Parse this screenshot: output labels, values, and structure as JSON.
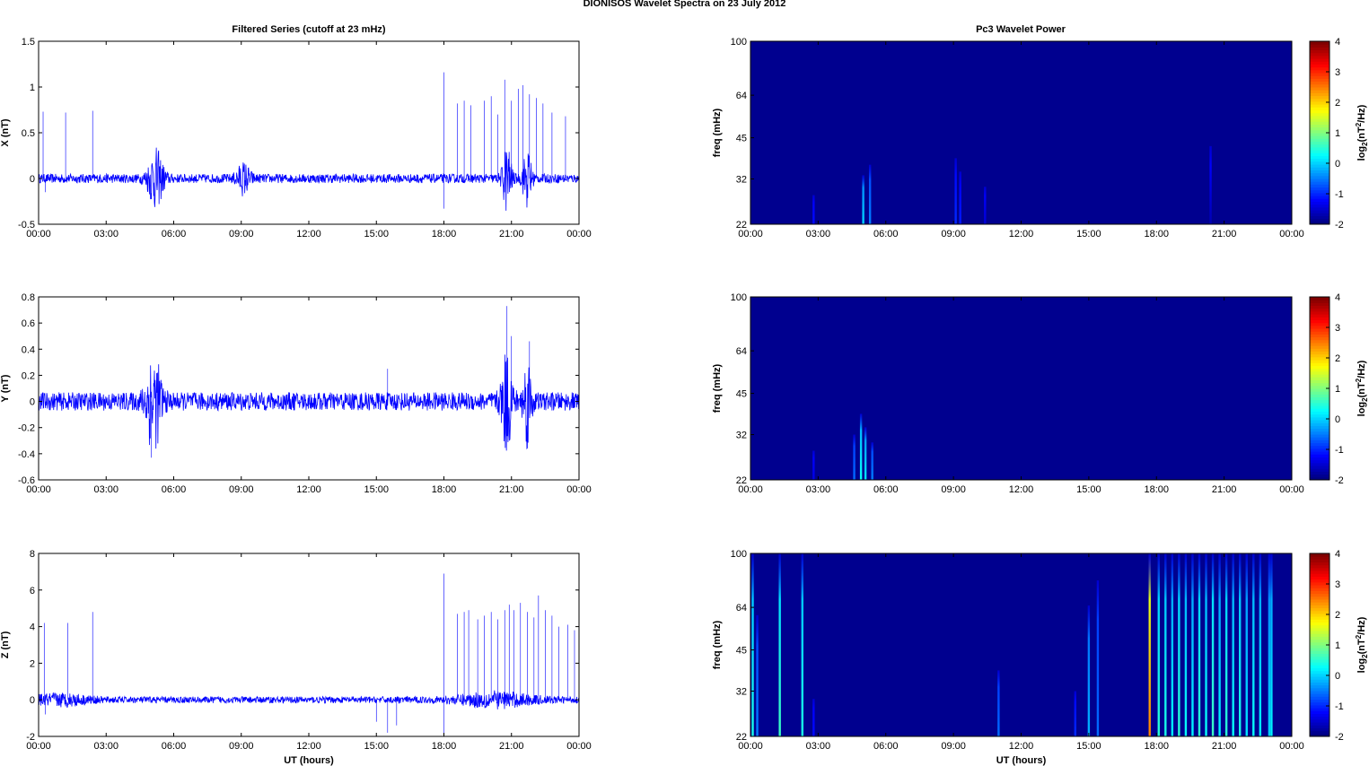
{
  "figure": {
    "title": "DIONISOS Wavelet Spectra on 23 July      2012",
    "left_column_title": "Filtered Series (cutoff at 23 mHz)",
    "right_column_title": "Pc3 Wavelet Power",
    "xlabel": "UT (hours)"
  },
  "colors": {
    "trace": "#0000ff",
    "spectrum_background": "#00008f",
    "colormap": "jet"
  },
  "chart_data": [
    {
      "type": "line",
      "panel": "X",
      "ylabel": "X (nT)",
      "xlabel": "",
      "x_ticks": [
        "00:00",
        "03:00",
        "06:00",
        "09:00",
        "12:00",
        "15:00",
        "18:00",
        "21:00",
        "00:00"
      ],
      "xlim": [
        0,
        24
      ],
      "ylim": [
        -0.5,
        1.5
      ],
      "y_ticks": [
        -0.5,
        0,
        0.5,
        1,
        1.5
      ],
      "y_tick_labels": [
        "-0.5",
        "0",
        "0.5",
        "1",
        "1.5"
      ],
      "noise_amplitude": 0.05,
      "bursts": [
        {
          "center": 5.2,
          "width": 0.35,
          "amplitude": 0.3
        },
        {
          "center": 9.1,
          "width": 0.3,
          "amplitude": 0.15
        },
        {
          "center": 20.8,
          "width": 0.2,
          "amplitude": 0.35
        },
        {
          "center": 21.7,
          "width": 0.2,
          "amplitude": 0.3
        }
      ],
      "spikes": [
        {
          "x": 0.2,
          "y": 0.73
        },
        {
          "x": 0.3,
          "y": -0.15
        },
        {
          "x": 1.2,
          "y": 0.72
        },
        {
          "x": 2.4,
          "y": 0.74
        },
        {
          "x": 18.0,
          "y": 1.16
        },
        {
          "x": 18.0,
          "y": -0.33
        },
        {
          "x": 18.6,
          "y": 0.82
        },
        {
          "x": 18.9,
          "y": 0.85
        },
        {
          "x": 19.2,
          "y": 0.8
        },
        {
          "x": 19.8,
          "y": 0.85
        },
        {
          "x": 20.1,
          "y": 0.9
        },
        {
          "x": 20.4,
          "y": 0.7
        },
        {
          "x": 20.7,
          "y": 1.08
        },
        {
          "x": 21.0,
          "y": 0.85
        },
        {
          "x": 21.3,
          "y": 0.98
        },
        {
          "x": 21.5,
          "y": 1.02
        },
        {
          "x": 21.8,
          "y": 0.92
        },
        {
          "x": 22.1,
          "y": 0.88
        },
        {
          "x": 22.4,
          "y": 0.82
        },
        {
          "x": 22.8,
          "y": 0.72
        },
        {
          "x": 23.4,
          "y": 0.68
        }
      ]
    },
    {
      "type": "line",
      "panel": "Y",
      "ylabel": "Y (nT)",
      "xlabel": "",
      "x_ticks": [
        "00:00",
        "03:00",
        "06:00",
        "09:00",
        "12:00",
        "15:00",
        "18:00",
        "21:00",
        "00:00"
      ],
      "xlim": [
        0,
        24
      ],
      "ylim": [
        -0.6,
        0.8
      ],
      "y_ticks": [
        -0.6,
        -0.4,
        -0.2,
        0,
        0.2,
        0.4,
        0.6,
        0.8
      ],
      "y_tick_labels": [
        "-0.6",
        "-0.4",
        "-0.2",
        "0",
        "0.2",
        "0.4",
        "0.6",
        "0.8"
      ],
      "noise_amplitude": 0.07,
      "bursts": [
        {
          "center": 5.1,
          "width": 0.35,
          "amplitude": 0.35
        },
        {
          "center": 20.8,
          "width": 0.25,
          "amplitude": 0.35
        },
        {
          "center": 21.7,
          "width": 0.2,
          "amplitude": 0.3
        }
      ],
      "spikes": [
        {
          "x": 5.0,
          "y": -0.43
        },
        {
          "x": 15.5,
          "y": 0.25
        },
        {
          "x": 20.8,
          "y": 0.73
        },
        {
          "x": 21.0,
          "y": 0.5
        },
        {
          "x": 21.8,
          "y": 0.46
        }
      ]
    },
    {
      "type": "line",
      "panel": "Z",
      "ylabel": "Z (nT)",
      "xlabel": "UT (hours)",
      "x_ticks": [
        "00:00",
        "03:00",
        "06:00",
        "09:00",
        "12:00",
        "15:00",
        "18:00",
        "21:00",
        "00:00"
      ],
      "xlim": [
        0,
        24
      ],
      "ylim": [
        -2,
        8
      ],
      "y_ticks": [
        -2,
        0,
        2,
        4,
        6,
        8
      ],
      "y_tick_labels": [
        "-2",
        "0",
        "2",
        "4",
        "6",
        "8"
      ],
      "noise_amplitude": 0.18,
      "bursts": [
        {
          "center": 1.0,
          "width": 1.2,
          "amplitude": 0.25
        },
        {
          "center": 20.3,
          "width": 1.6,
          "amplitude": 0.35
        }
      ],
      "spikes": [
        {
          "x": 0.25,
          "y": 4.2
        },
        {
          "x": 0.3,
          "y": -0.8
        },
        {
          "x": 1.3,
          "y": 4.2
        },
        {
          "x": 2.4,
          "y": 4.8
        },
        {
          "x": 15.0,
          "y": -1.2
        },
        {
          "x": 15.5,
          "y": -1.8
        },
        {
          "x": 15.9,
          "y": -1.4
        },
        {
          "x": 18.0,
          "y": 6.9
        },
        {
          "x": 18.0,
          "y": -1.9
        },
        {
          "x": 18.6,
          "y": 4.7
        },
        {
          "x": 18.9,
          "y": 4.8
        },
        {
          "x": 19.1,
          "y": 4.9
        },
        {
          "x": 19.5,
          "y": 4.4
        },
        {
          "x": 19.8,
          "y": 4.6
        },
        {
          "x": 20.1,
          "y": 4.8
        },
        {
          "x": 20.4,
          "y": 4.4
        },
        {
          "x": 20.7,
          "y": 4.9
        },
        {
          "x": 20.9,
          "y": 5.2
        },
        {
          "x": 21.1,
          "y": 4.9
        },
        {
          "x": 21.4,
          "y": 5.3
        },
        {
          "x": 21.7,
          "y": 4.8
        },
        {
          "x": 22.0,
          "y": 4.5
        },
        {
          "x": 22.2,
          "y": 5.7
        },
        {
          "x": 22.5,
          "y": 4.9
        },
        {
          "x": 22.8,
          "y": 4.6
        },
        {
          "x": 23.1,
          "y": 4.0
        },
        {
          "x": 23.5,
          "y": 4.1
        },
        {
          "x": 23.8,
          "y": 3.8
        }
      ]
    },
    {
      "type": "heatmap",
      "panel": "X",
      "ylabel": "freq (mHz)",
      "xlabel": "",
      "x_ticks": [
        "00:00",
        "03:00",
        "06:00",
        "09:00",
        "12:00",
        "15:00",
        "18:00",
        "21:00",
        "00:00"
      ],
      "xlim": [
        0,
        24
      ],
      "ylim": [
        22,
        100
      ],
      "y_ticks": [
        22,
        32,
        45,
        64,
        100
      ],
      "y_tick_labels": [
        "22",
        "32",
        "45",
        "64",
        "100"
      ],
      "colorbar_label": "log2(nT²/Hz)",
      "colorbar_label_base": "log",
      "colorbar_label_sub": "2",
      "colorbar_label_paren": "(nT",
      "colorbar_label_sup": "2",
      "colorbar_label_tail": "/Hz)",
      "clim": [
        -2,
        4
      ],
      "colorbar_ticks": [
        -2,
        -1,
        0,
        1,
        2,
        3,
        4
      ],
      "colorbar_tick_labels": [
        "-2",
        "-1",
        "0",
        "1",
        "2",
        "3",
        "4"
      ],
      "streaks": [
        {
          "t": 2.8,
          "fmax": 28,
          "level": -1.2
        },
        {
          "t": 5.0,
          "fmax": 33,
          "level": 0.0
        },
        {
          "t": 5.3,
          "fmax": 36,
          "level": -0.5
        },
        {
          "t": 9.1,
          "fmax": 38,
          "level": -1.0
        },
        {
          "t": 9.3,
          "fmax": 34,
          "level": -1.1
        },
        {
          "t": 10.4,
          "fmax": 30,
          "level": -1.5
        },
        {
          "t": 20.4,
          "fmax": 42,
          "level": -1.7
        }
      ]
    },
    {
      "type": "heatmap",
      "panel": "Y",
      "ylabel": "freq (mHz)",
      "xlabel": "",
      "x_ticks": [
        "00:00",
        "03:00",
        "06:00",
        "09:00",
        "12:00",
        "15:00",
        "18:00",
        "21:00",
        "00:00"
      ],
      "xlim": [
        0,
        24
      ],
      "ylim": [
        22,
        100
      ],
      "y_ticks": [
        22,
        32,
        45,
        64,
        100
      ],
      "y_tick_labels": [
        "22",
        "32",
        "45",
        "64",
        "100"
      ],
      "colorbar_label": "log2(nT²/Hz)",
      "colorbar_label_base": "log",
      "colorbar_label_sub": "2",
      "colorbar_label_paren": "(nT",
      "colorbar_label_sup": "2",
      "colorbar_label_tail": "/Hz)",
      "clim": [
        -2,
        4
      ],
      "colorbar_ticks": [
        -2,
        -1,
        0,
        1,
        2,
        3,
        4
      ],
      "colorbar_tick_labels": [
        "-2",
        "-1",
        "0",
        "1",
        "2",
        "3",
        "4"
      ],
      "streaks": [
        {
          "t": 2.8,
          "fmax": 28,
          "level": -1.4
        },
        {
          "t": 4.6,
          "fmax": 32,
          "level": -0.6
        },
        {
          "t": 4.9,
          "fmax": 38,
          "level": 0.3
        },
        {
          "t": 5.1,
          "fmax": 34,
          "level": 0.1
        },
        {
          "t": 5.4,
          "fmax": 30,
          "level": -0.5
        }
      ]
    },
    {
      "type": "heatmap",
      "panel": "Z",
      "ylabel": "freq (mHz)",
      "xlabel": "UT (hours)",
      "x_ticks": [
        "00:00",
        "03:00",
        "06:00",
        "09:00",
        "12:00",
        "15:00",
        "18:00",
        "21:00",
        "00:00"
      ],
      "xlim": [
        0,
        24
      ],
      "ylim": [
        22,
        100
      ],
      "y_ticks": [
        22,
        32,
        45,
        64,
        100
      ],
      "y_tick_labels": [
        "22",
        "32",
        "45",
        "64",
        "100"
      ],
      "colorbar_label": "log2(nT²/Hz)",
      "colorbar_label_base": "log",
      "colorbar_label_sub": "2",
      "colorbar_label_paren": "(nT",
      "colorbar_label_sup": "2",
      "colorbar_label_tail": "/Hz)",
      "clim": [
        -2,
        4
      ],
      "colorbar_ticks": [
        -2,
        -1,
        0,
        1,
        2,
        3,
        4
      ],
      "colorbar_tick_labels": [
        "-2",
        "-1",
        "0",
        "1",
        "2",
        "3",
        "4"
      ],
      "streaks": [
        {
          "t": 0.1,
          "fmax": 100,
          "level": 0.4
        },
        {
          "t": 0.3,
          "fmax": 60,
          "level": -0.5
        },
        {
          "t": 1.3,
          "fmax": 100,
          "level": 0.6
        },
        {
          "t": 2.3,
          "fmax": 100,
          "level": 0.4
        },
        {
          "t": 2.8,
          "fmax": 30,
          "level": -1.2
        },
        {
          "t": 11.0,
          "fmax": 38,
          "level": -0.6
        },
        {
          "t": 14.4,
          "fmax": 32,
          "level": -1.0
        },
        {
          "t": 15.0,
          "fmax": 65,
          "level": -0.2
        },
        {
          "t": 15.4,
          "fmax": 80,
          "level": -0.6
        },
        {
          "t": 17.7,
          "fmax": 100,
          "level": 2.5
        },
        {
          "t": 18.1,
          "fmax": 100,
          "level": 0.5
        },
        {
          "t": 18.4,
          "fmax": 100,
          "level": 0.4
        },
        {
          "t": 18.7,
          "fmax": 100,
          "level": 0.2
        },
        {
          "t": 19.0,
          "fmax": 100,
          "level": 0.5
        },
        {
          "t": 19.3,
          "fmax": 100,
          "level": 0.3
        },
        {
          "t": 19.6,
          "fmax": 100,
          "level": 0.2
        },
        {
          "t": 19.9,
          "fmax": 100,
          "level": 0.5
        },
        {
          "t": 20.2,
          "fmax": 100,
          "level": 0.3
        },
        {
          "t": 20.5,
          "fmax": 100,
          "level": 0.6
        },
        {
          "t": 20.8,
          "fmax": 100,
          "level": 0.2
        },
        {
          "t": 21.1,
          "fmax": 100,
          "level": 0.5
        },
        {
          "t": 21.4,
          "fmax": 100,
          "level": 0.3
        },
        {
          "t": 21.7,
          "fmax": 100,
          "level": 0.4
        },
        {
          "t": 22.0,
          "fmax": 100,
          "level": 0.1
        },
        {
          "t": 22.3,
          "fmax": 100,
          "level": 0.3
        },
        {
          "t": 22.6,
          "fmax": 100,
          "level": 0.2
        },
        {
          "t": 23.0,
          "fmax": 100,
          "level": 0.0
        },
        {
          "t": 23.1,
          "fmax": 100,
          "level": 0.2
        }
      ]
    }
  ]
}
